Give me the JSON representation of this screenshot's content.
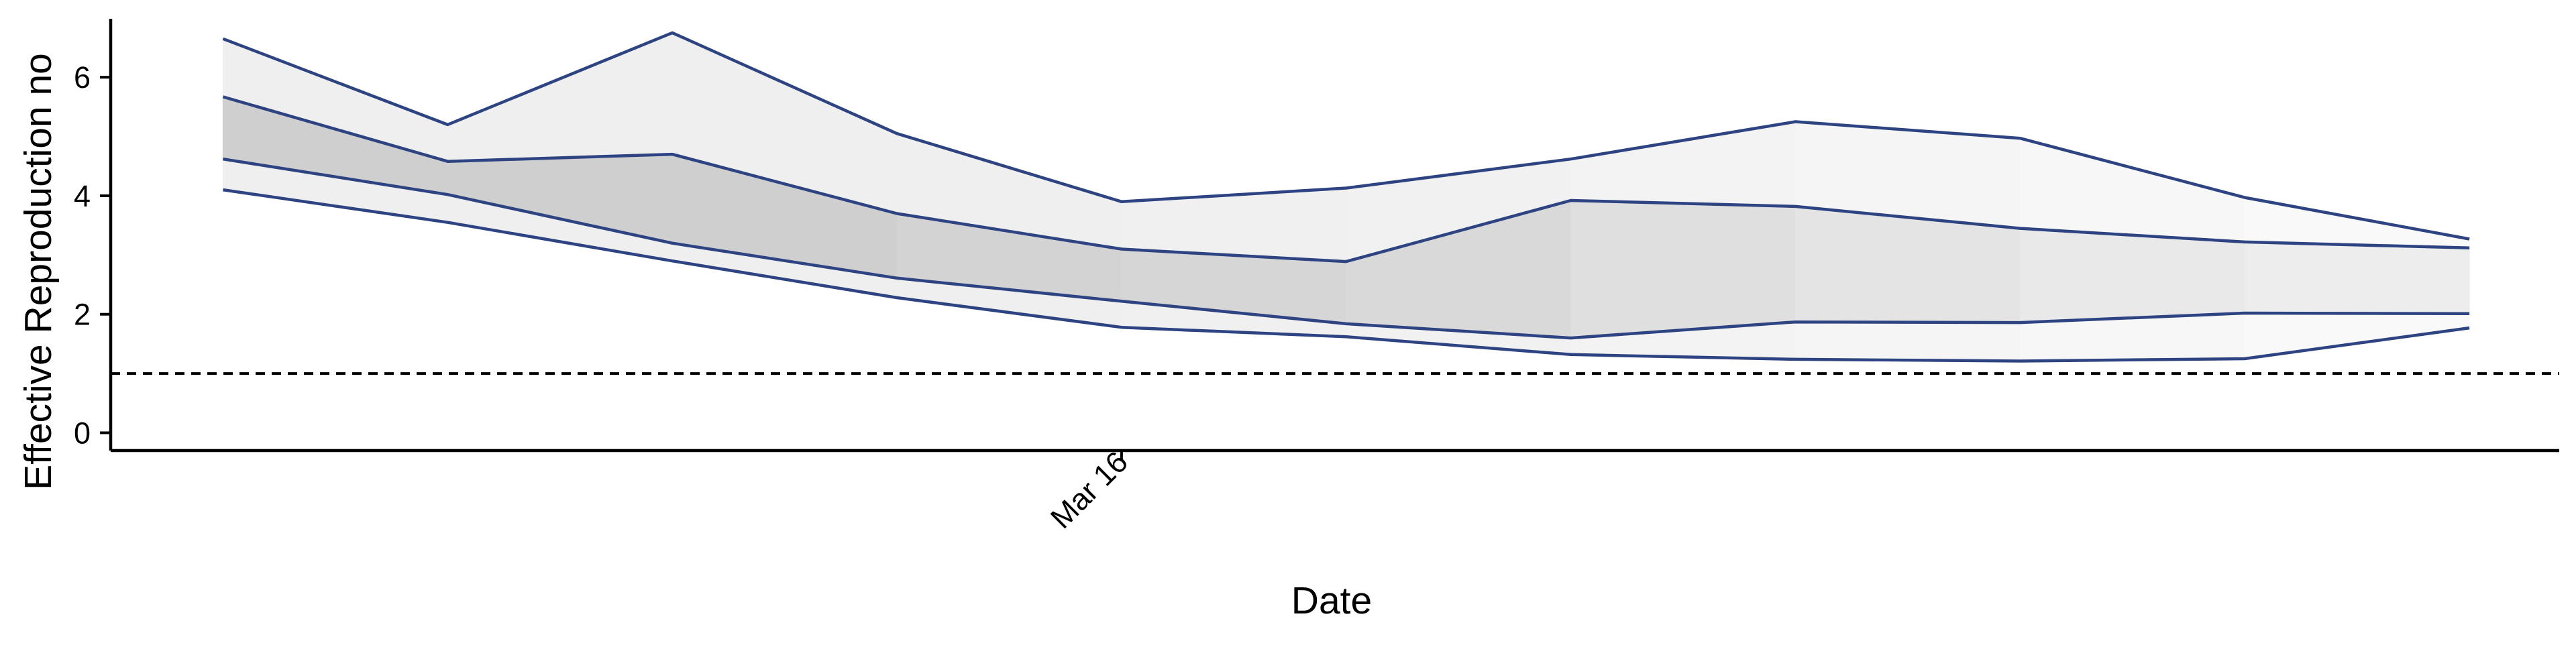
{
  "chart_data": {
    "type": "area",
    "title": "",
    "xlabel": "Date",
    "ylabel": "Effective Reproduction no",
    "ylim": [
      -0.3,
      7.1
    ],
    "yticks": [
      0,
      2,
      4,
      6
    ],
    "xticks": [
      {
        "x": 4.0,
        "label": "Mar 16"
      }
    ],
    "xlim": [
      -0.5,
      10.4
    ],
    "grid": false,
    "legend": "none",
    "reference_line": {
      "y": 1,
      "style": "dashed"
    },
    "x": [
      0,
      1,
      2,
      3,
      4,
      5,
      6,
      7,
      8,
      9,
      10
    ],
    "bands": [
      {
        "level": "outer",
        "lower": [
          4.1,
          3.55,
          2.9,
          2.28,
          1.78,
          1.62,
          1.32,
          1.24,
          1.21,
          1.25,
          1.77
        ],
        "upper": [
          6.65,
          5.2,
          6.75,
          5.05,
          3.9,
          4.13,
          4.62,
          5.25,
          4.97,
          3.97,
          3.27
        ]
      },
      {
        "level": "inner",
        "lower": [
          4.62,
          4.02,
          3.2,
          2.61,
          2.22,
          1.84,
          1.6,
          1.87,
          1.86,
          2.02,
          2.01
        ],
        "upper": [
          5.67,
          4.58,
          4.7,
          3.7,
          3.1,
          2.89,
          3.92,
          3.82,
          3.45,
          3.22,
          3.12
        ]
      }
    ],
    "colors": {
      "line": "#2e4482",
      "outer_band_fills": [
        "#efefef",
        "#efefef",
        "#efefef",
        "#efefef",
        "#f0f0f0",
        "#f1f1f1",
        "#f3f3f3",
        "#f5f5f5",
        "#f7f7f7",
        "#f9f9f9"
      ],
      "inner_band_fills": [
        "#cfcfcf",
        "#cfcfcf",
        "#cfcfcf",
        "#d3d3d3",
        "#d6d6d6",
        "#d9d9d9",
        "#dfdfdf",
        "#e4e4e4",
        "#e9e9e9",
        "#ededed"
      ],
      "axis": "#000000",
      "reference": "#000000"
    }
  }
}
